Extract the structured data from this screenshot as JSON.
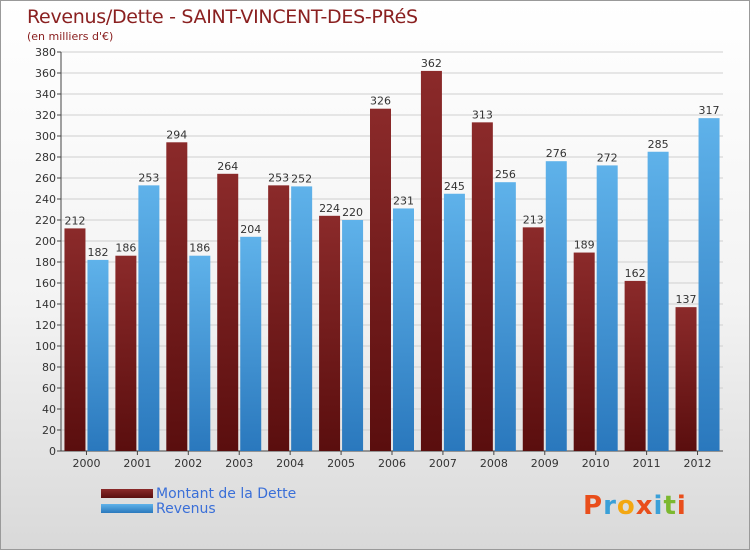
{
  "title": "Revenus/Dette - SAINT-VINCENT-DES-PRéS",
  "subtitle": "(en milliers d'€)",
  "logo": {
    "text": "Proxiti",
    "colors": [
      "#e94e1b",
      "#3aa0d8",
      "#f3a712",
      "#e94e1b",
      "#3aa0d8",
      "#7cb82f",
      "#e94e1b"
    ]
  },
  "legend": {
    "debt_label": "Montant de la Dette",
    "revenue_label": "Revenus"
  },
  "colors": {
    "debt_top": "#8b2a2a",
    "debt_bottom": "#5a0e0e",
    "revenue_top": "#5fb2ea",
    "revenue_bottom": "#2a78bd",
    "label": "#3a6fd8",
    "title": "#8a2020"
  },
  "chart_data": {
    "type": "bar",
    "title": "Revenus/Dette - SAINT-VINCENT-DES-PRéS",
    "subtitle": "(en milliers d'€)",
    "xlabel": "",
    "ylabel": "",
    "ylim": [
      0,
      380
    ],
    "ytick_step": 20,
    "grid": true,
    "legend_position": "bottom-left",
    "categories": [
      "2000",
      "2001",
      "2002",
      "2003",
      "2004",
      "2005",
      "2006",
      "2007",
      "2008",
      "2009",
      "2010",
      "2011",
      "2012"
    ],
    "series": [
      {
        "name": "Montant de la Dette",
        "values": [
          212,
          186,
          294,
          264,
          253,
          224,
          326,
          362,
          313,
          213,
          189,
          162,
          137
        ]
      },
      {
        "name": "Revenus",
        "values": [
          182,
          253,
          186,
          204,
          252,
          220,
          231,
          245,
          256,
          276,
          272,
          285,
          317
        ]
      }
    ]
  }
}
